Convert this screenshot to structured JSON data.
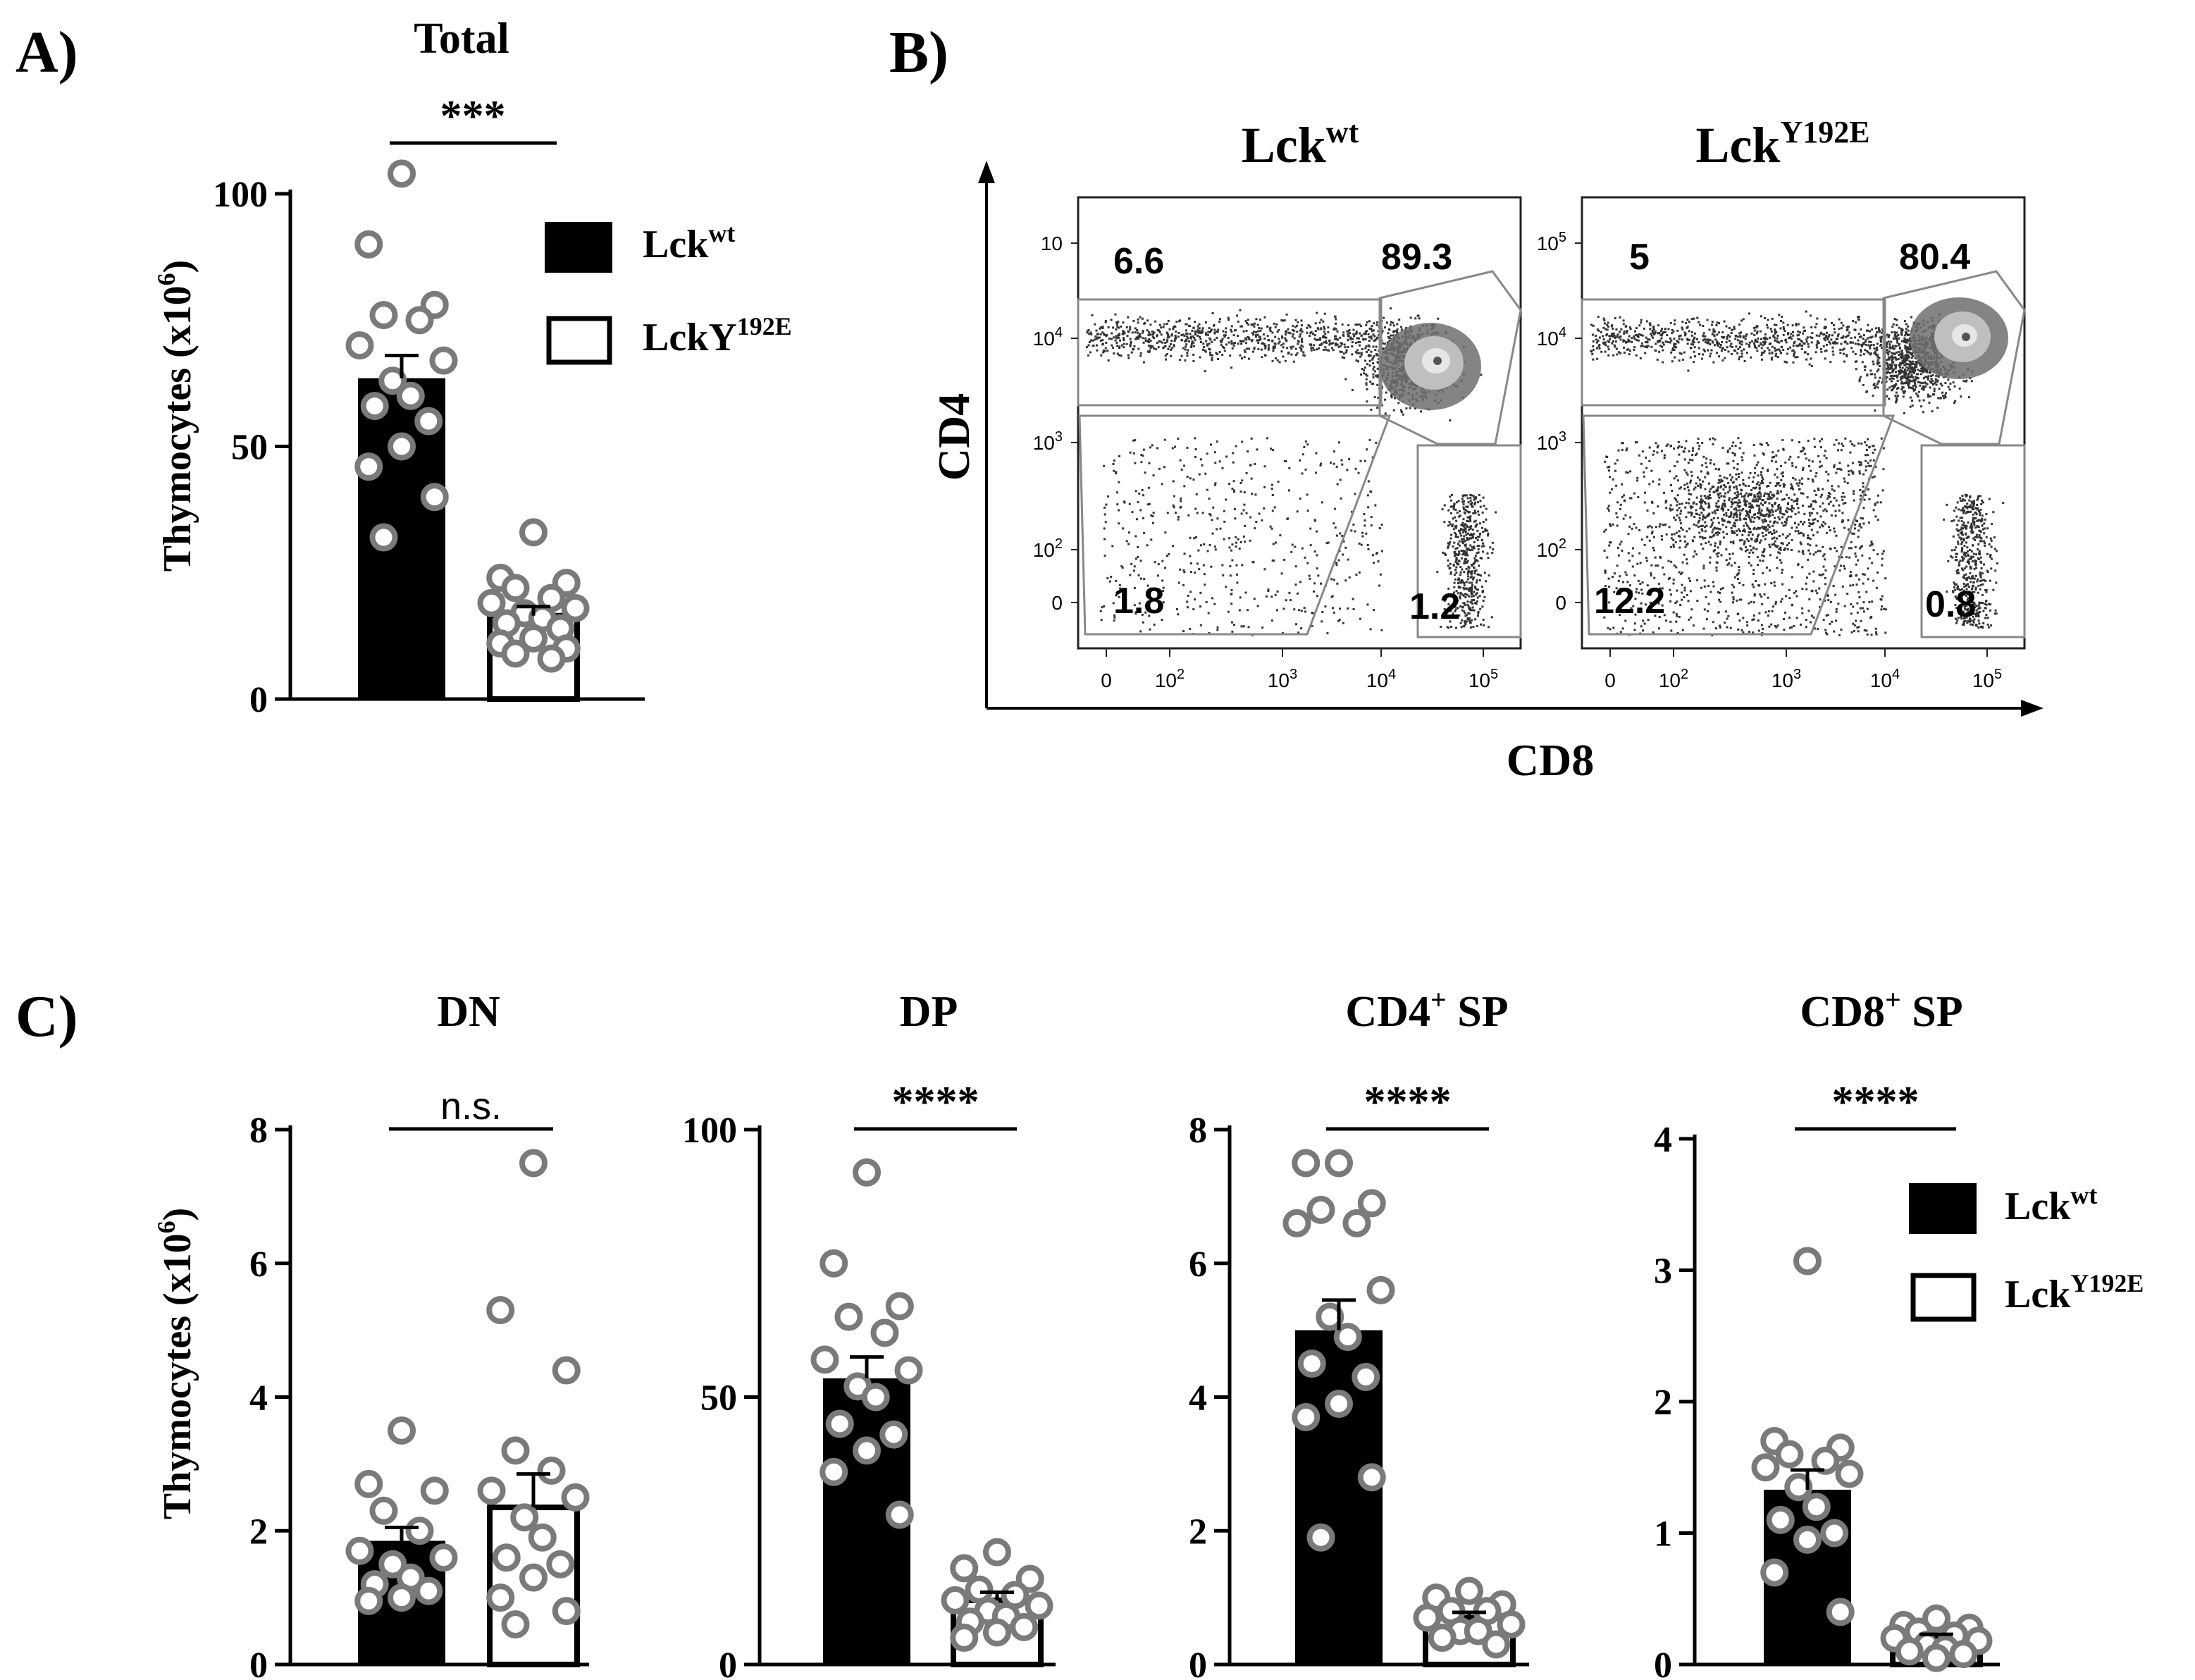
{
  "panel_labels": {
    "a": "A)",
    "b": "B)",
    "c": "C)"
  },
  "legend": {
    "wt_base": "Lck",
    "wt_sup": "wt",
    "mut_base_a": "LckY",
    "mut_sup_a": "192E",
    "mut_base_c": "Lck",
    "mut_sup_c": "Y192E"
  },
  "y_label": {
    "base": "Thymocytes (x10",
    "sup": "6",
    "close": ")"
  },
  "colors": {
    "wt_fill": "#000000",
    "mut_fill": "#ffffff",
    "dot_edge": "#7a7a7a",
    "dot_fill": "#ffffff"
  },
  "chart_data": [
    {
      "id": "A",
      "type": "bar",
      "title": "Total",
      "significance": "***",
      "categories": [
        "Lckwt",
        "LckY192E"
      ],
      "ylim": [
        0,
        100
      ],
      "yticks": [
        0,
        50,
        100
      ],
      "series": [
        {
          "name": "Lckwt",
          "mean": 63.5,
          "sem": 4.5,
          "points": [
            104,
            90,
            78,
            76,
            75,
            70,
            67,
            63,
            60,
            58,
            55,
            50,
            46,
            40,
            32
          ]
        },
        {
          "name": "LckY192E",
          "mean": 16.5,
          "sem": 1.8,
          "points": [
            33,
            24,
            23,
            22,
            20,
            19,
            18,
            17,
            16,
            15,
            14,
            12,
            11,
            10,
            9,
            8
          ]
        }
      ]
    },
    {
      "id": "C-DN",
      "type": "bar",
      "title": "DN",
      "significance": "n.s.",
      "categories": [
        "Lckwt",
        "LckY192E"
      ],
      "ylim": [
        0,
        8
      ],
      "yticks": [
        0,
        2,
        4,
        6,
        8
      ],
      "series": [
        {
          "name": "Lckwt",
          "mean": 1.85,
          "sem": 0.2,
          "points": [
            3.5,
            2.7,
            2.6,
            2.3,
            2.0,
            1.7,
            1.6,
            1.5,
            1.3,
            1.2,
            1.1,
            1.0,
            0.95
          ]
        },
        {
          "name": "LckY192E",
          "mean": 2.35,
          "sem": 0.5,
          "points": [
            7.5,
            5.3,
            4.4,
            3.2,
            2.9,
            2.6,
            2.5,
            2.2,
            1.9,
            1.6,
            1.5,
            1.3,
            1.0,
            0.8,
            0.6
          ]
        }
      ]
    },
    {
      "id": "C-DP",
      "type": "bar",
      "title": "DP",
      "significance": "****",
      "categories": [
        "Lckwt",
        "LckY192E"
      ],
      "ylim": [
        0,
        100
      ],
      "yticks": [
        0,
        50,
        100
      ],
      "series": [
        {
          "name": "Lckwt",
          "mean": 53.5,
          "sem": 4.0,
          "points": [
            92,
            75,
            67,
            65,
            62,
            57,
            55,
            52,
            50,
            45,
            43,
            40,
            36,
            28
          ]
        },
        {
          "name": "LckY192E",
          "mean": 12,
          "sem": 1.5,
          "points": [
            21,
            18,
            16,
            14,
            13,
            12,
            11,
            10,
            9,
            8,
            7,
            6,
            5
          ]
        }
      ]
    },
    {
      "id": "C-CD4SP",
      "type": "bar",
      "title": "CD4+ SP",
      "significance": "****",
      "categories": [
        "Lckwt",
        "LckY192E"
      ],
      "ylim": [
        0,
        8
      ],
      "yticks": [
        0,
        2,
        4,
        6,
        8
      ],
      "series": [
        {
          "name": "Lckwt",
          "mean": 5.0,
          "sem": 0.45,
          "points": [
            7.5,
            7.5,
            6.9,
            6.8,
            6.6,
            6.6,
            5.6,
            5.2,
            4.9,
            4.5,
            4.3,
            3.9,
            3.7,
            2.8,
            1.9
          ]
        },
        {
          "name": "LckY192E",
          "mean": 0.7,
          "sem": 0.08,
          "points": [
            1.1,
            1.0,
            0.9,
            0.8,
            0.8,
            0.7,
            0.6,
            0.5,
            0.5,
            0.4,
            0.3
          ]
        }
      ]
    },
    {
      "id": "C-CD8SP",
      "type": "bar",
      "title": "CD8+ SP",
      "significance": "****",
      "categories": [
        "Lckwt",
        "LckY192E"
      ],
      "ylim": [
        0,
        4
      ],
      "yticks": [
        0,
        1,
        2,
        3,
        4
      ],
      "series": [
        {
          "name": "Lckwt",
          "mean": 1.33,
          "sem": 0.15,
          "points": [
            3.07,
            1.7,
            1.65,
            1.6,
            1.55,
            1.5,
            1.45,
            1.35,
            1.2,
            1.1,
            1.0,
            0.95,
            0.7,
            0.4
          ]
        },
        {
          "name": "LckY192E",
          "mean": 0.2,
          "sem": 0.03,
          "points": [
            0.35,
            0.3,
            0.28,
            0.25,
            0.22,
            0.2,
            0.18,
            0.15,
            0.12,
            0.1,
            0.08,
            0.05
          ]
        }
      ]
    }
  ],
  "flow": {
    "x_axis": "CD8",
    "y_axis": "CD4",
    "plots": [
      {
        "title_base": "Lck",
        "title_sup": "wt",
        "q_tl": "6.6",
        "q_tr": "89.3",
        "q_bl": "1.8",
        "q_br": "1.2",
        "y_top_tick": "10"
      },
      {
        "title_base": "Lck",
        "title_sup": "Y192E",
        "q_tl": "5",
        "q_tr": "80.4",
        "q_bl": "12.2",
        "q_br": "0.8",
        "y_top_tick": "10^5"
      }
    ],
    "x_ticks": [
      "0",
      "10^2",
      "10^3",
      "10^4",
      "10^5"
    ],
    "y_ticks": [
      "10^4",
      "10^3",
      "10^2",
      "0"
    ]
  }
}
